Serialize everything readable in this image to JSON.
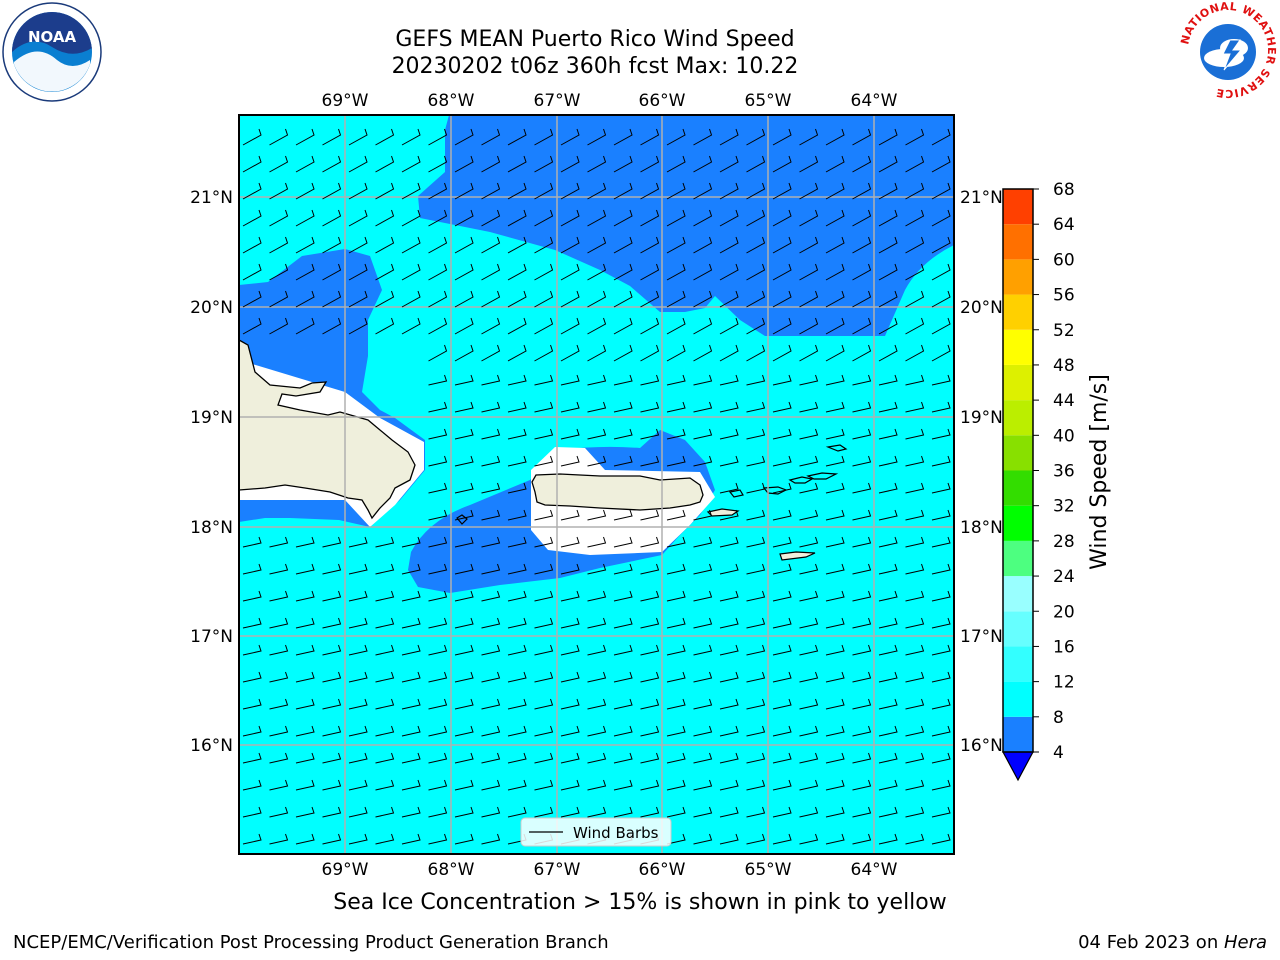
{
  "title": {
    "line1": "GEFS MEAN Puerto Rico Wind Speed",
    "line2": "20230202 t06z 360h fcst   Max: 10.22"
  },
  "map": {
    "lon_labels": [
      "69°W",
      "68°W",
      "67°W",
      "66°W",
      "65°W",
      "64°W"
    ],
    "lat_labels": [
      "21°N",
      "20°N",
      "19°N",
      "18°N",
      "17°N",
      "16°N"
    ],
    "colors": {
      "ocean_fill": "#00ffff",
      "low_wind_fill": "#1a80ff",
      "land_fill": "#efefdc",
      "gridline": "#b0b0b0"
    },
    "legend_label": "Wind Barbs"
  },
  "colorbar": {
    "label": "Wind Speed [m/s]",
    "ticks": [
      "4",
      "8",
      "12",
      "16",
      "20",
      "24",
      "28",
      "32",
      "36",
      "40",
      "44",
      "48",
      "52",
      "56",
      "60",
      "64",
      "68"
    ],
    "colors": [
      "#1a80ff",
      "#00ffff",
      "#33ffff",
      "#66ffff",
      "#99ffff",
      "#4dff80",
      "#00ff00",
      "#33dd00",
      "#88e000",
      "#bbee00",
      "#ddf000",
      "#ffff00",
      "#ffd000",
      "#ffa000",
      "#ff7000",
      "#ff4000",
      "#ff0000"
    ],
    "under_color": "#0000ff"
  },
  "note": "Sea Ice Concentration > 15% is shown in pink to yellow",
  "footer": {
    "left": "NCEP/EMC/Verification Post Processing Product Generation Branch",
    "date": "04 Feb 2023 on ",
    "machine": "Hera"
  },
  "logos": {
    "noaa": "NOAA",
    "nws_ring": "NATIONAL WEATHER SERVICE"
  }
}
